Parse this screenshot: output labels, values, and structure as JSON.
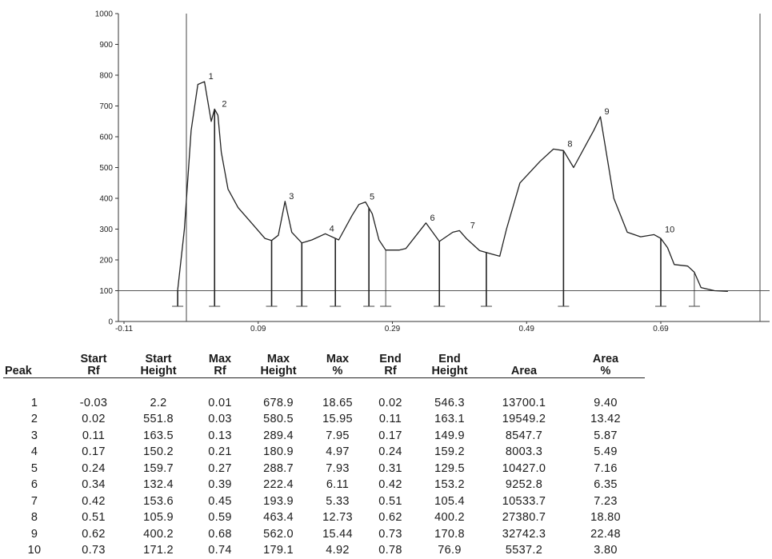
{
  "chart_data": {
    "type": "line",
    "title": "",
    "xlabel": "",
    "ylabel": "",
    "ylim": [
      0,
      1000
    ],
    "y_ticks": [
      "0",
      "100",
      "200",
      "300",
      "400",
      "500",
      "600",
      "700",
      "800",
      "900",
      "1000"
    ],
    "x_ticks": [
      "-0.11",
      "0.09",
      "0.29",
      "0.49",
      "0.69"
    ],
    "xlim": [
      -0.11,
      0.79
    ],
    "baseline_y": 100,
    "grid": false,
    "series": [
      {
        "x": [
          -0.03,
          -0.02,
          -0.01,
          0.0,
          0.01,
          0.02,
          0.025,
          0.03,
          0.035,
          0.045,
          0.06,
          0.08,
          0.1,
          0.11,
          0.12,
          0.13,
          0.14,
          0.155,
          0.17,
          0.19,
          0.21,
          0.23,
          0.24,
          0.25,
          0.26,
          0.27,
          0.28,
          0.3,
          0.31,
          0.34,
          0.36,
          0.38,
          0.39,
          0.4,
          0.42,
          0.44,
          0.45,
          0.46,
          0.48,
          0.51,
          0.53,
          0.545,
          0.56,
          0.58,
          0.59,
          0.6,
          0.62,
          0.64,
          0.66,
          0.68,
          0.69,
          0.7,
          0.71,
          0.73,
          0.74,
          0.75,
          0.77,
          0.79
        ],
        "y": [
          102,
          300,
          620,
          770,
          779,
          650,
          690,
          670,
          550,
          430,
          370,
          320,
          270,
          263,
          280,
          390,
          290,
          255,
          265,
          285,
          265,
          345,
          380,
          388,
          350,
          265,
          232,
          232,
          237,
          320,
          260,
          290,
          295,
          270,
          230,
          218,
          212,
          300,
          450,
          520,
          560,
          555,
          500,
          580,
          620,
          665,
          400,
          290,
          275,
          282,
          270,
          240,
          185,
          180,
          160,
          110,
          100,
          98
        ]
      }
    ],
    "peak_labels": [
      {
        "label": "1",
        "x": 0.01,
        "y": 779
      },
      {
        "label": "2",
        "x": 0.03,
        "y": 690
      },
      {
        "label": "3",
        "x": 0.13,
        "y": 390
      },
      {
        "label": "4",
        "x": 0.19,
        "y": 285
      },
      {
        "label": "5",
        "x": 0.25,
        "y": 388
      },
      {
        "label": "6",
        "x": 0.34,
        "y": 320
      },
      {
        "label": "7",
        "x": 0.4,
        "y": 295
      },
      {
        "label": "8",
        "x": 0.545,
        "y": 560
      },
      {
        "label": "9",
        "x": 0.6,
        "y": 665
      },
      {
        "label": "10",
        "x": 0.69,
        "y": 282
      }
    ],
    "dividers": [
      -0.03,
      0.025,
      0.11,
      0.155,
      0.205,
      0.255,
      0.28,
      0.36,
      0.43,
      0.545,
      0.69,
      0.74
    ],
    "dividers_thin": [
      0.28,
      0.31,
      0.74
    ],
    "table": {
      "columns": [
        [
          "Peak"
        ],
        [
          "Start",
          "Rf"
        ],
        [
          "Start",
          "Height"
        ],
        [
          "Max",
          "Rf"
        ],
        [
          "Max",
          "Height"
        ],
        [
          "Max",
          "%"
        ],
        [
          "End",
          "Rf"
        ],
        [
          "End",
          "Height"
        ],
        [
          "Area"
        ],
        [
          "Area",
          "%"
        ]
      ],
      "rows": [
        [
          "1",
          "-0.03",
          "2.2",
          "0.01",
          "678.9",
          "18.65",
          "0.02",
          "546.3",
          "13700.1",
          "9.40"
        ],
        [
          "2",
          "0.02",
          "551.8",
          "0.03",
          "580.5",
          "15.95",
          "0.11",
          "163.1",
          "19549.2",
          "13.42"
        ],
        [
          "3",
          "0.11",
          "163.5",
          "0.13",
          "289.4",
          "7.95",
          "0.17",
          "149.9",
          "8547.7",
          "5.87"
        ],
        [
          "4",
          "0.17",
          "150.2",
          "0.21",
          "180.9",
          "4.97",
          "0.24",
          "159.2",
          "8003.3",
          "5.49"
        ],
        [
          "5",
          "0.24",
          "159.7",
          "0.27",
          "288.7",
          "7.93",
          "0.31",
          "129.5",
          "10427.0",
          "7.16"
        ],
        [
          "6",
          "0.34",
          "132.4",
          "0.39",
          "222.4",
          "6.11",
          "0.42",
          "153.2",
          "9252.8",
          "6.35"
        ],
        [
          "7",
          "0.42",
          "153.6",
          "0.45",
          "193.9",
          "5.33",
          "0.51",
          "105.4",
          "10533.7",
          "7.23"
        ],
        [
          "8",
          "0.51",
          "105.9",
          "0.59",
          "463.4",
          "12.73",
          "0.62",
          "400.2",
          "27380.7",
          "18.80"
        ],
        [
          "9",
          "0.62",
          "400.2",
          "0.68",
          "562.0",
          "15.44",
          "0.73",
          "170.8",
          "32742.3",
          "22.48"
        ],
        [
          "10",
          "0.73",
          "171.2",
          "0.74",
          "179.1",
          "4.92",
          "0.78",
          "76.9",
          "5537.2",
          "3.80"
        ]
      ]
    }
  }
}
